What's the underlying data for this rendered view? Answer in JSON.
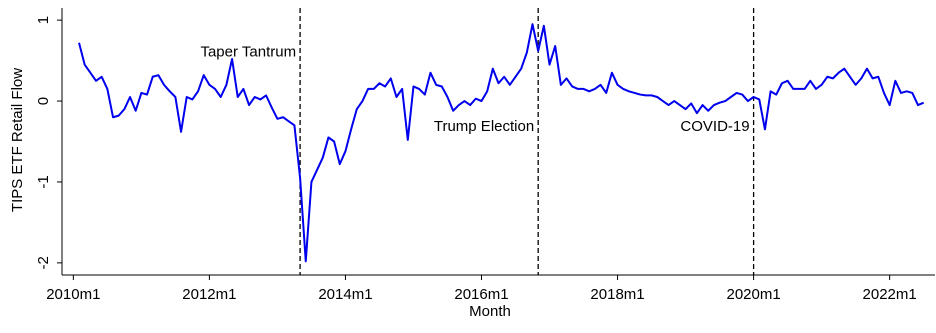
{
  "chart_data": {
    "type": "line",
    "xlabel": "Month",
    "ylabel": "TIPS ETF Retail Flow",
    "x": [
      "2010m2",
      "2010m3",
      "2010m4",
      "2010m5",
      "2010m6",
      "2010m7",
      "2010m8",
      "2010m9",
      "2010m10",
      "2010m11",
      "2010m12",
      "2011m1",
      "2011m2",
      "2011m3",
      "2011m4",
      "2011m5",
      "2011m6",
      "2011m7",
      "2011m8",
      "2011m9",
      "2011m10",
      "2011m11",
      "2011m12",
      "2012m1",
      "2012m2",
      "2012m3",
      "2012m4",
      "2012m5",
      "2012m6",
      "2012m7",
      "2012m8",
      "2012m9",
      "2012m10",
      "2012m11",
      "2012m12",
      "2013m1",
      "2013m2",
      "2013m3",
      "2013m4",
      "2013m5",
      "2013m6",
      "2013m7",
      "2013m8",
      "2013m9",
      "2013m10",
      "2013m11",
      "2013m12",
      "2014m1",
      "2014m2",
      "2014m3",
      "2014m4",
      "2014m5",
      "2014m6",
      "2014m7",
      "2014m8",
      "2014m9",
      "2014m10",
      "2014m11",
      "2014m12",
      "2015m1",
      "2015m2",
      "2015m3",
      "2015m4",
      "2015m5",
      "2015m6",
      "2015m7",
      "2015m8",
      "2015m9",
      "2015m10",
      "2015m11",
      "2015m12",
      "2016m1",
      "2016m2",
      "2016m3",
      "2016m4",
      "2016m5",
      "2016m6",
      "2016m7",
      "2016m8",
      "2016m9",
      "2016m10",
      "2016m11",
      "2016m12",
      "2017m1",
      "2017m2",
      "2017m3",
      "2017m4",
      "2017m5",
      "2017m6",
      "2017m7",
      "2017m8",
      "2017m9",
      "2017m10",
      "2017m11",
      "2017m12",
      "2018m1",
      "2018m2",
      "2018m3",
      "2018m4",
      "2018m5",
      "2018m6",
      "2018m7",
      "2018m8",
      "2018m9",
      "2018m10",
      "2018m11",
      "2018m12",
      "2019m1",
      "2019m2",
      "2019m3",
      "2019m4",
      "2019m5",
      "2019m6",
      "2019m7",
      "2019m8",
      "2019m9",
      "2019m10",
      "2019m11",
      "2019m12",
      "2020m1",
      "2020m2",
      "2020m3",
      "2020m4",
      "2020m5",
      "2020m6",
      "2020m7",
      "2020m8",
      "2020m9",
      "2020m10",
      "2020m11",
      "2020m12",
      "2021m1",
      "2021m2",
      "2021m3",
      "2021m4",
      "2021m5",
      "2021m6",
      "2021m7",
      "2021m8",
      "2021m9",
      "2021m10",
      "2021m11",
      "2021m12",
      "2022m1",
      "2022m2",
      "2022m3",
      "2022m4",
      "2022m5",
      "2022m6",
      "2022m7"
    ],
    "series": [
      {
        "name": "TIPS ETF Retail Flow",
        "color": "#0000ee",
        "values": [
          0.72,
          0.45,
          0.35,
          0.25,
          0.3,
          0.15,
          -0.2,
          -0.18,
          -0.1,
          0.05,
          -0.12,
          0.1,
          0.08,
          0.3,
          0.32,
          0.2,
          0.12,
          0.05,
          -0.38,
          0.05,
          0.02,
          0.12,
          0.32,
          0.2,
          0.15,
          0.05,
          0.2,
          0.52,
          0.05,
          0.15,
          -0.05,
          0.05,
          0.02,
          0.07,
          -0.08,
          -0.22,
          -0.2,
          -0.25,
          -0.3,
          -0.95,
          -1.98,
          -1.0,
          -0.85,
          -0.7,
          -0.45,
          -0.5,
          -0.78,
          -0.62,
          -0.35,
          -0.1,
          0.0,
          0.15,
          0.15,
          0.22,
          0.18,
          0.28,
          0.05,
          0.15,
          -0.48,
          0.18,
          0.15,
          0.08,
          0.35,
          0.2,
          0.18,
          0.05,
          -0.12,
          -0.05,
          0.0,
          -0.05,
          0.03,
          0.0,
          0.12,
          0.4,
          0.22,
          0.3,
          0.2,
          0.3,
          0.4,
          0.6,
          0.95,
          0.62,
          0.93,
          0.45,
          0.68,
          0.2,
          0.28,
          0.18,
          0.15,
          0.15,
          0.12,
          0.15,
          0.2,
          0.1,
          0.35,
          0.2,
          0.15,
          0.12,
          0.1,
          0.08,
          0.07,
          0.07,
          0.05,
          0.0,
          -0.05,
          0.0,
          -0.05,
          -0.1,
          -0.03,
          -0.15,
          -0.05,
          -0.12,
          -0.05,
          -0.02,
          0.0,
          0.05,
          0.1,
          0.08,
          0.0,
          0.05,
          0.02,
          -0.35,
          0.12,
          0.08,
          0.22,
          0.25,
          0.15,
          0.15,
          0.15,
          0.25,
          0.15,
          0.2,
          0.3,
          0.28,
          0.35,
          0.4,
          0.3,
          0.2,
          0.28,
          0.4,
          0.28,
          0.3,
          0.1,
          -0.05,
          0.25,
          0.1,
          0.12,
          0.1,
          -0.05,
          -0.02
        ]
      }
    ],
    "events": [
      {
        "x": "2013m5",
        "label": "Taper Tantrum"
      },
      {
        "x": "2016m11",
        "label": "Trump Election"
      },
      {
        "x": "2020m1",
        "label": "COVID-19"
      }
    ],
    "xlim": [
      "2009m11",
      "2022m9"
    ],
    "xticks": [
      "2010m1",
      "2012m1",
      "2014m1",
      "2016m1",
      "2018m1",
      "2020m1",
      "2022m1"
    ],
    "ylim": [
      -2.15,
      1.15
    ],
    "yticks": [
      -2,
      -1,
      0,
      1
    ],
    "grid": false
  }
}
